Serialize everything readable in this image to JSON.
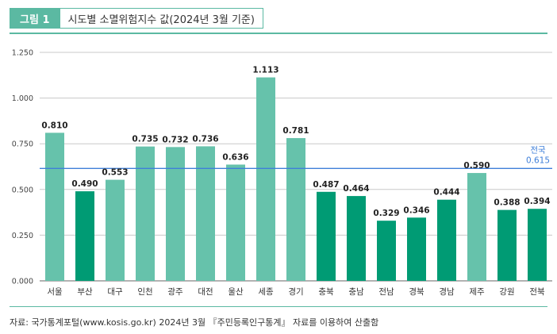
{
  "figure": {
    "badge": "그림 1",
    "title": "시도별 소멸위험지수 값(2024년 3월 기준)"
  },
  "source": "자료: 국가통계포털(www.kosis.go.kr) 2024년 3월 『주민등록인구통계』 자료를 이용하여 산출함",
  "colors": {
    "light_bar": "#66c2ab",
    "dark_bar": "#009b74",
    "reference_line": "#3f7fd9",
    "accent": "#5bb9a2"
  },
  "chart_data": {
    "type": "bar",
    "title": "시도별 소멸위험지수 값(2024년 3월 기준)",
    "xlabel": "",
    "ylabel": "",
    "ylim": [
      0,
      1.25
    ],
    "yticks": [
      "0.000",
      "0.250",
      "0.500",
      "0.750",
      "1.000",
      "1.250"
    ],
    "ytick_values": [
      0,
      0.25,
      0.5,
      0.75,
      1.0,
      1.25
    ],
    "grid": true,
    "categories": [
      "서울",
      "부산",
      "대구",
      "인천",
      "광주",
      "대전",
      "울산",
      "세종",
      "경기",
      "충북",
      "충남",
      "전남",
      "경북",
      "경남",
      "제주",
      "강원",
      "전북"
    ],
    "values": [
      0.81,
      0.49,
      0.553,
      0.735,
      0.732,
      0.736,
      0.636,
      1.113,
      0.781,
      0.487,
      0.464,
      0.329,
      0.346,
      0.444,
      0.59,
      0.388,
      0.394
    ],
    "value_labels": [
      "0.810",
      "0.490",
      "0.553",
      "0.735",
      "0.732",
      "0.736",
      "0.636",
      "1.113",
      "0.781",
      "0.487",
      "0.464",
      "0.329",
      "0.346",
      "0.444",
      "0.590",
      "0.388",
      "0.394"
    ],
    "shades": [
      "light",
      "dark",
      "light",
      "light",
      "light",
      "light",
      "light",
      "light",
      "light",
      "dark",
      "dark",
      "dark",
      "dark",
      "dark",
      "light",
      "dark",
      "dark"
    ],
    "reference": {
      "label": "전국",
      "value": 0.615,
      "value_label": "0.615"
    }
  }
}
